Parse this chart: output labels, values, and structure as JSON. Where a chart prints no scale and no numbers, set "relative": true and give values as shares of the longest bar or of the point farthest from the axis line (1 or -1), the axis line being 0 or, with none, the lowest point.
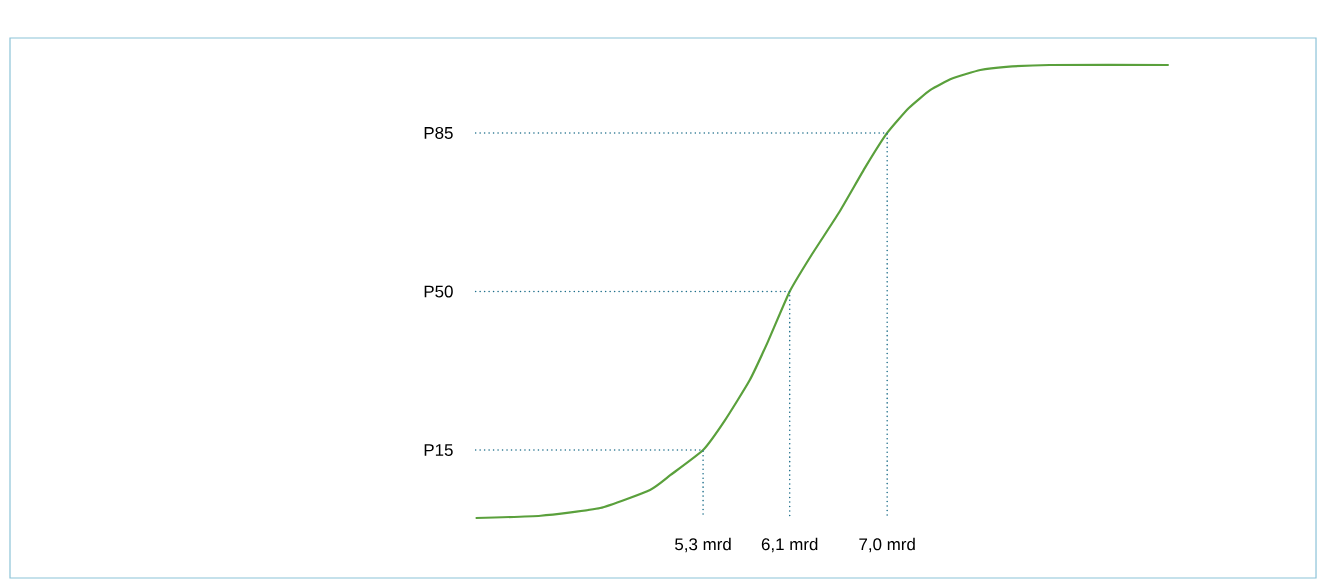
{
  "chart_data": {
    "type": "line",
    "relative": true,
    "x": [
      3.2,
      3.8,
      4.35,
      4.81,
      5.0,
      5.3,
      5.5,
      5.73,
      5.9,
      6.1,
      6.3,
      6.56,
      6.8,
      7.0,
      7.2,
      7.4,
      7.6,
      7.86,
      8.1,
      8.5,
      9.6
    ],
    "series": [
      {
        "color": "#5aa03c",
        "values": [
          0,
          0.005,
          0.022,
          0.062,
          0.095,
          0.15,
          0.215,
          0.304,
          0.39,
          0.5,
          0.58,
          0.676,
          0.775,
          0.85,
          0.905,
          0.945,
          0.97,
          0.989,
          0.996,
          1,
          1
        ]
      },
      {
        "color": "#1f6f8b",
        "line_style": "dotted",
        "x": [
          3.2,
          5.3,
          5.3
        ],
        "values": [
          0.15,
          0.15,
          0
        ]
      },
      {
        "color": "#1f6f8b",
        "line_style": "dotted",
        "x": [
          3.2,
          6.1,
          6.1
        ],
        "values": [
          0.5,
          0.5,
          0
        ]
      },
      {
        "color": "#1f6f8b",
        "line_style": "dotted",
        "x": [
          3.2,
          7.0,
          7.0
        ],
        "values": [
          0.85,
          0.85,
          0
        ]
      }
    ],
    "xlim": [
      -1.1,
      10.96
    ],
    "xticks": [
      {
        "value": 5.3,
        "label": "5,3 mrd"
      },
      {
        "value": 6.1,
        "label": "6,1 mrd"
      },
      {
        "value": 7.0,
        "label": "7,0 mrd"
      }
    ],
    "annotations": [
      "P15",
      "P50",
      "P85"
    ],
    "marker": "none",
    "line_style": "solid"
  }
}
